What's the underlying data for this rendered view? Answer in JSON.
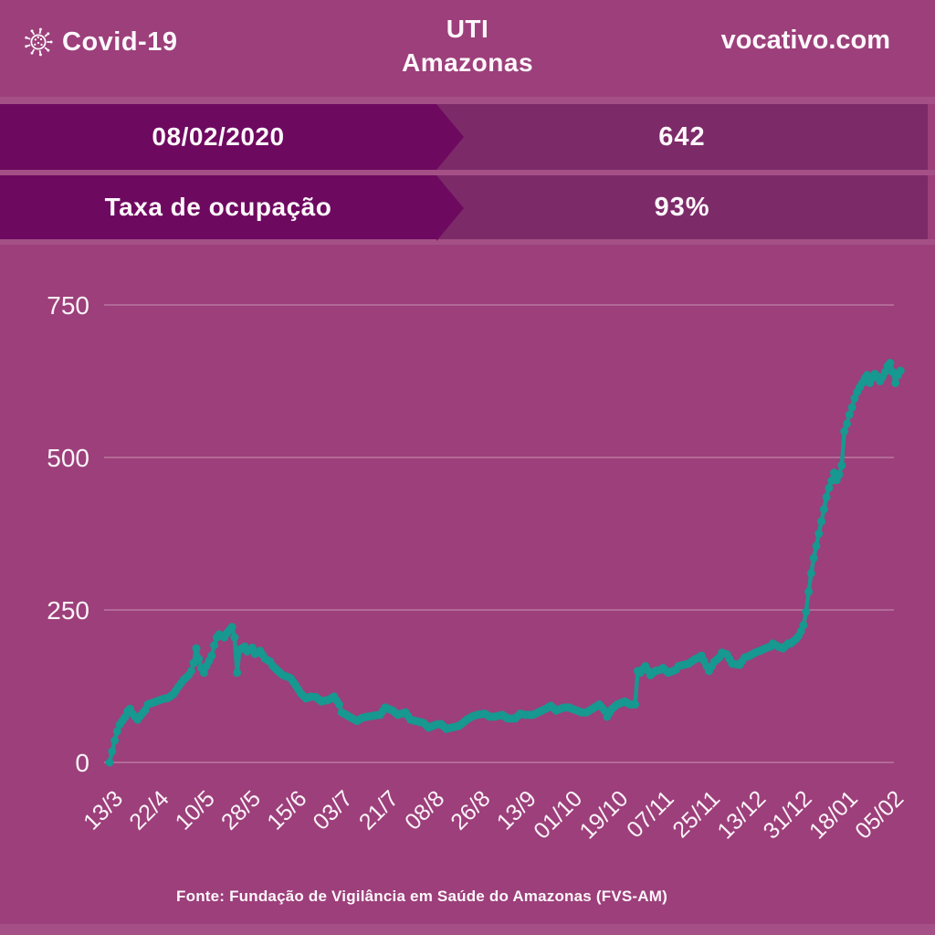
{
  "header": {
    "brand": "Covid-19",
    "title_line1": "UTI",
    "title_line2": "Amazonas",
    "website": "vocativo.com"
  },
  "info_rows": [
    {
      "label": "08/02/2020",
      "value": "642"
    },
    {
      "label": "Taxa de ocupação",
      "value": "93%"
    }
  ],
  "footer": {
    "source": "Fonte: Fundação de Vigilância em Saúde do Amazonas (FVS-AM)"
  },
  "colors": {
    "background": "#9c3f7a",
    "banner_dark": "#6e0960",
    "banner_medium": "#7d2a69",
    "line": "#179890",
    "text": "#fdf7fb",
    "grid": "rgba(255,255,255,0.45)"
  },
  "chart_data": {
    "type": "line",
    "title": "UTI Amazonas",
    "latest_date": "08/02/2020",
    "latest_value": 642,
    "occupancy_rate": "93%",
    "ylim": [
      0,
      750
    ],
    "y_ticks": [
      0,
      250,
      500,
      750
    ],
    "x_tick_labels": [
      "13/3",
      "22/4",
      "10/5",
      "28/5",
      "15/6",
      "03/7",
      "21/7",
      "08/8",
      "26/8",
      "13/9",
      "01/10",
      "19/10",
      "07/11",
      "25/11",
      "13/12",
      "31/12",
      "18/01",
      "05/02"
    ],
    "x_tick_interval_points": 18,
    "grid": true,
    "legend": false,
    "marker": "circle",
    "points": [
      [
        0,
        0
      ],
      [
        1,
        18
      ],
      [
        2,
        36
      ],
      [
        3,
        51
      ],
      [
        4,
        62
      ],
      [
        6,
        74
      ],
      [
        7,
        84
      ],
      [
        8,
        88
      ],
      [
        9,
        80
      ],
      [
        11,
        70
      ],
      [
        12,
        76
      ],
      [
        14,
        86
      ],
      [
        15,
        95
      ],
      [
        17,
        98
      ],
      [
        19,
        101
      ],
      [
        21,
        104
      ],
      [
        23,
        106
      ],
      [
        25,
        112
      ],
      [
        27,
        124
      ],
      [
        29,
        135
      ],
      [
        31,
        143
      ],
      [
        32,
        150
      ],
      [
        33,
        163
      ],
      [
        34,
        187
      ],
      [
        35,
        170
      ],
      [
        36,
        155
      ],
      [
        37,
        147
      ],
      [
        38,
        158
      ],
      [
        40,
        175
      ],
      [
        41,
        192
      ],
      [
        42,
        205
      ],
      [
        43,
        210
      ],
      [
        45,
        205
      ],
      [
        46,
        212
      ],
      [
        48,
        222
      ],
      [
        49,
        205
      ],
      [
        50,
        147
      ],
      [
        51,
        185
      ],
      [
        53,
        190
      ],
      [
        54,
        182
      ],
      [
        56,
        188
      ],
      [
        57,
        178
      ],
      [
        59,
        183
      ],
      [
        61,
        170
      ],
      [
        63,
        165
      ],
      [
        64,
        158
      ],
      [
        66,
        150
      ],
      [
        68,
        143
      ],
      [
        70,
        140
      ],
      [
        71,
        138
      ],
      [
        73,
        126
      ],
      [
        75,
        113
      ],
      [
        77,
        105
      ],
      [
        79,
        108
      ],
      [
        81,
        107
      ],
      [
        83,
        100
      ],
      [
        86,
        103
      ],
      [
        88,
        108
      ],
      [
        90,
        95
      ],
      [
        91,
        82
      ],
      [
        94,
        75
      ],
      [
        97,
        68
      ],
      [
        99,
        73
      ],
      [
        101,
        75
      ],
      [
        104,
        77
      ],
      [
        106,
        78
      ],
      [
        108,
        90
      ],
      [
        111,
        85
      ],
      [
        113,
        78
      ],
      [
        116,
        82
      ],
      [
        118,
        70
      ],
      [
        121,
        67
      ],
      [
        123,
        65
      ],
      [
        125,
        57
      ],
      [
        128,
        62
      ],
      [
        130,
        63
      ],
      [
        132,
        55
      ],
      [
        135,
        58
      ],
      [
        137,
        60
      ],
      [
        140,
        70
      ],
      [
        142,
        75
      ],
      [
        144,
        78
      ],
      [
        147,
        80
      ],
      [
        149,
        75
      ],
      [
        151,
        75
      ],
      [
        154,
        78
      ],
      [
        156,
        72
      ],
      [
        159,
        72
      ],
      [
        161,
        80
      ],
      [
        163,
        78
      ],
      [
        166,
        78
      ],
      [
        168,
        82
      ],
      [
        171,
        88
      ],
      [
        173,
        93
      ],
      [
        175,
        85
      ],
      [
        178,
        90
      ],
      [
        180,
        90
      ],
      [
        182,
        87
      ],
      [
        185,
        82
      ],
      [
        187,
        82
      ],
      [
        190,
        90
      ],
      [
        192,
        95
      ],
      [
        194,
        85
      ],
      [
        195,
        75
      ],
      [
        197,
        88
      ],
      [
        199,
        95
      ],
      [
        202,
        100
      ],
      [
        204,
        95
      ],
      [
        206,
        95
      ],
      [
        207,
        150
      ],
      [
        208,
        147
      ],
      [
        210,
        158
      ],
      [
        212,
        143
      ],
      [
        214,
        150
      ],
      [
        216,
        152
      ],
      [
        217,
        155
      ],
      [
        219,
        147
      ],
      [
        222,
        152
      ],
      [
        223,
        158
      ],
      [
        225,
        160
      ],
      [
        227,
        162
      ],
      [
        229,
        168
      ],
      [
        230,
        170
      ],
      [
        232,
        175
      ],
      [
        234,
        158
      ],
      [
        235,
        150
      ],
      [
        237,
        165
      ],
      [
        239,
        172
      ],
      [
        240,
        180
      ],
      [
        242,
        177
      ],
      [
        244,
        162
      ],
      [
        247,
        160
      ],
      [
        249,
        172
      ],
      [
        251,
        175
      ],
      [
        253,
        180
      ],
      [
        255,
        183
      ],
      [
        257,
        187
      ],
      [
        259,
        190
      ],
      [
        260,
        195
      ],
      [
        262,
        190
      ],
      [
        264,
        187
      ],
      [
        266,
        195
      ],
      [
        267,
        195
      ],
      [
        269,
        202
      ],
      [
        270,
        207
      ],
      [
        271,
        215
      ],
      [
        272,
        225
      ],
      [
        273,
        247
      ],
      [
        274,
        280
      ],
      [
        275,
        310
      ],
      [
        276,
        335
      ],
      [
        277,
        355
      ],
      [
        278,
        375
      ],
      [
        279,
        395
      ],
      [
        280,
        415
      ],
      [
        281,
        435
      ],
      [
        282,
        450
      ],
      [
        283,
        462
      ],
      [
        284,
        475
      ],
      [
        285,
        463
      ],
      [
        286,
        472
      ],
      [
        287,
        487
      ],
      [
        288,
        543
      ],
      [
        289,
        555
      ],
      [
        290,
        570
      ],
      [
        291,
        582
      ],
      [
        292,
        597
      ],
      [
        293,
        607
      ],
      [
        294,
        615
      ],
      [
        295,
        622
      ],
      [
        296,
        630
      ],
      [
        297,
        635
      ],
      [
        298,
        622
      ],
      [
        299,
        630
      ],
      [
        300,
        637
      ],
      [
        301,
        633
      ],
      [
        302,
        625
      ],
      [
        303,
        632
      ],
      [
        304,
        640
      ],
      [
        305,
        650
      ],
      [
        306,
        655
      ],
      [
        307,
        640
      ],
      [
        308,
        622
      ],
      [
        309,
        635
      ],
      [
        310,
        642
      ]
    ]
  }
}
